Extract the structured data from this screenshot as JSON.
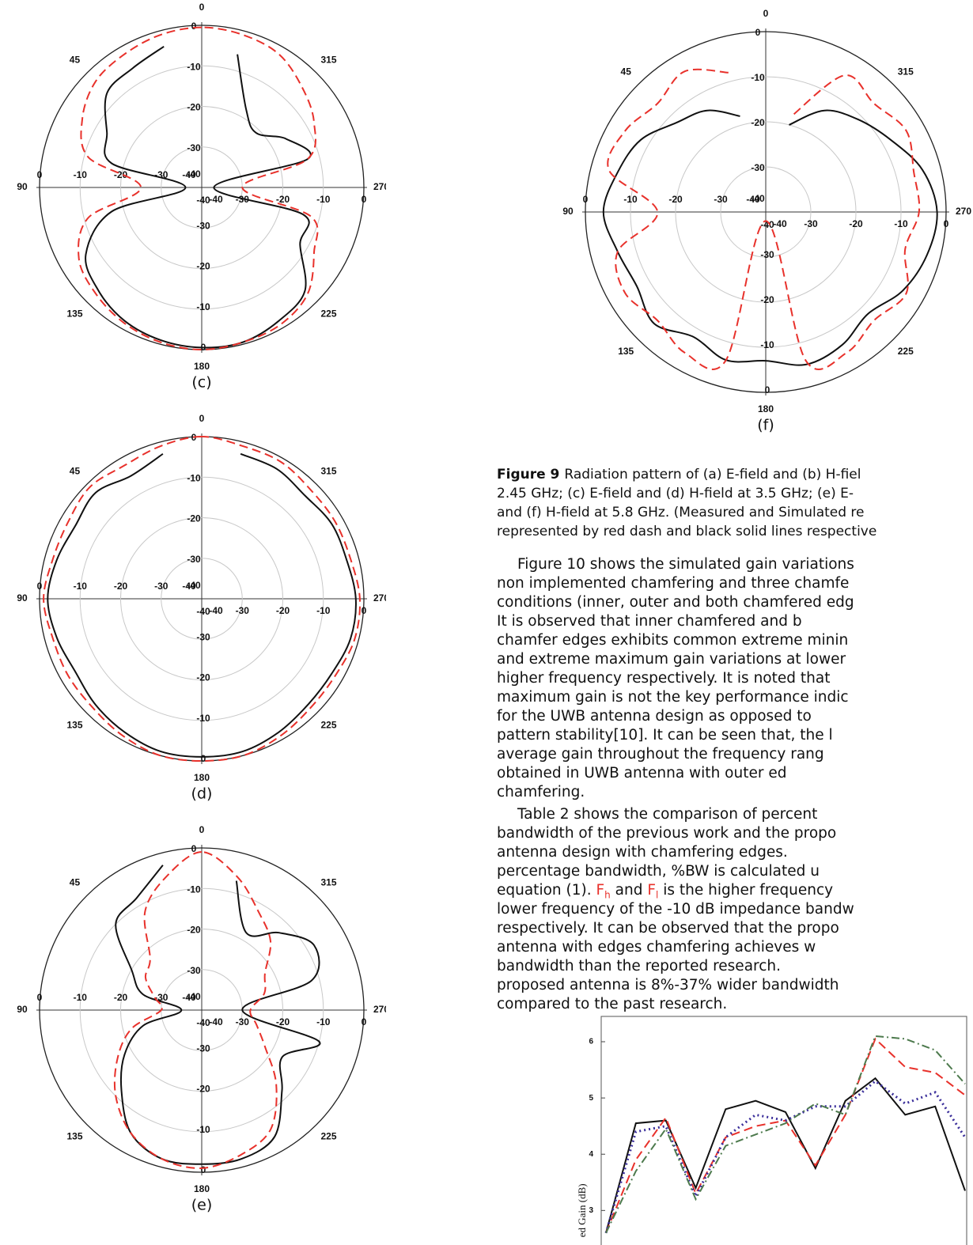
{
  "chart_data": [
    {
      "type": "polar",
      "label": "(c)",
      "rlim": [
        -40,
        0
      ],
      "rticks": [
        0,
        -10,
        -20,
        -30,
        -40
      ],
      "angle_ticks": [
        0,
        45,
        90,
        135,
        180,
        225,
        270,
        315
      ],
      "angles": [
        0,
        15,
        30,
        45,
        60,
        75,
        90,
        105,
        120,
        135,
        150,
        165,
        180,
        195,
        210,
        225,
        240,
        255,
        270,
        285,
        300,
        315,
        330,
        345
      ],
      "series": [
        {
          "color": "#111111",
          "dash": "solid",
          "values": [
            null,
            -4,
            -6,
            -7,
            -13,
            -17,
            -36,
            -17,
            -7,
            -4,
            -2,
            -1,
            -0.5,
            -0.5,
            -2,
            -4,
            -12,
            -14,
            -37,
            -13,
            -16,
            -21,
            -18,
            -6
          ]
        },
        {
          "color": "#e8312b",
          "dash": "dashed",
          "values": [
            -0.5,
            -1,
            -2,
            -3,
            -6,
            -11,
            -25,
            -11,
            -5,
            -3,
            -1.5,
            -0.5,
            0,
            -0.5,
            -1,
            -3,
            -8,
            -12,
            -30,
            -13,
            -8,
            -5,
            -2,
            -1
          ]
        }
      ]
    },
    {
      "type": "polar",
      "label": "(d)",
      "rlim": [
        -40,
        0
      ],
      "rticks": [
        0,
        -10,
        -20,
        -30,
        -40
      ],
      "angle_ticks": [
        0,
        45,
        90,
        135,
        180,
        225,
        270,
        315
      ],
      "angles": [
        0,
        15,
        30,
        45,
        60,
        75,
        90,
        105,
        120,
        135,
        150,
        165,
        180,
        195,
        210,
        225,
        240,
        255,
        270,
        285,
        300,
        315,
        330,
        345
      ],
      "series": [
        {
          "color": "#111111",
          "dash": "solid",
          "values": [
            null,
            -3,
            -5,
            -3,
            -4,
            -3,
            -2,
            -3,
            -4,
            -3,
            -2,
            -1,
            -1,
            -1,
            -2,
            -3,
            -3,
            -2,
            -2,
            -3,
            -3,
            -4,
            -3,
            -3
          ]
        },
        {
          "color": "#e8312b",
          "dash": "dashed",
          "values": [
            0,
            -1,
            -2,
            -1,
            -2,
            -2,
            -1,
            -2,
            -2,
            -2,
            -1,
            0,
            0,
            0,
            -1,
            -2,
            -2,
            -1,
            -1,
            -2,
            -2,
            -2,
            -1,
            -1
          ]
        }
      ]
    },
    {
      "type": "polar",
      "label": "(e)",
      "rlim": [
        -40,
        0
      ],
      "rticks": [
        0,
        -10,
        -20,
        -30,
        -40
      ],
      "angle_ticks": [
        0,
        45,
        90,
        135,
        180,
        225,
        270,
        315
      ],
      "angles": [
        0,
        15,
        30,
        45,
        60,
        75,
        90,
        105,
        120,
        135,
        150,
        165,
        180,
        195,
        210,
        225,
        240,
        255,
        270,
        285,
        300,
        315,
        330,
        345
      ],
      "series": [
        {
          "color": "#111111",
          "dash": "solid",
          "values": [
            null,
            -3,
            -8,
            -10,
            -20,
            -25,
            -35,
            -25,
            -18,
            -12,
            -5,
            -2,
            -2,
            -2,
            -4,
            -12,
            -17,
            -10,
            -30,
            -12,
            -8,
            -13,
            -18,
            -7
          ]
        },
        {
          "color": "#e8312b",
          "dash": "dashed",
          "values": [
            -1,
            -6,
            -12,
            -22,
            -24,
            -28,
            -30,
            -22,
            -16,
            -10,
            -5,
            -2,
            -1,
            -3,
            -6,
            -14,
            -22,
            -26,
            -28,
            -24,
            -22,
            -16,
            -12,
            -6
          ]
        }
      ]
    },
    {
      "type": "polar",
      "label": "(f)",
      "rlim": [
        -40,
        0
      ],
      "rticks": [
        0,
        -10,
        -20,
        -30,
        -40
      ],
      "angle_ticks": [
        0,
        45,
        90,
        135,
        180,
        225,
        270,
        315
      ],
      "angles": [
        0,
        15,
        30,
        45,
        60,
        75,
        90,
        105,
        120,
        135,
        150,
        165,
        180,
        195,
        210,
        225,
        240,
        255,
        270,
        285,
        300,
        315,
        330,
        345
      ],
      "series": [
        {
          "color": "#111111",
          "dash": "solid",
          "values": [
            null,
            -18,
            -14,
            -12,
            -8,
            -6,
            -4,
            -6,
            -7,
            -5,
            -8,
            -6,
            -7,
            -5,
            -6,
            -8,
            -5,
            -3,
            -2,
            -4,
            -8,
            -11,
            -14,
            -20
          ]
        },
        {
          "color": "#e8312b",
          "dash": "dashed",
          "values": [
            null,
            -8,
            -4,
            -6,
            -4,
            -4,
            -16,
            -6,
            -4,
            -6,
            -4,
            -6,
            -38,
            -6,
            -4,
            -6,
            -4,
            -8,
            -6,
            -6,
            -4,
            -6,
            -5,
            -18
          ]
        }
      ]
    },
    {
      "type": "line",
      "ylabel": "ed Gain (dB)",
      "categories": [
        null,
        null,
        null,
        null,
        null,
        null,
        null,
        null,
        null,
        null,
        null,
        null,
        null
      ],
      "ylim": [
        2.4,
        6.45
      ],
      "yticks": [
        3,
        4,
        5,
        6
      ],
      "series": [
        {
          "color": "#111111",
          "dash": "solid",
          "values": [
            2.6,
            4.55,
            4.6,
            3.4,
            4.8,
            4.95,
            4.75,
            3.75,
            4.95,
            5.35,
            4.7,
            4.85,
            3.35
          ]
        },
        {
          "color": "#e8312b",
          "dash": "dashed",
          "values": [
            2.6,
            3.9,
            4.65,
            3.3,
            4.3,
            4.5,
            4.6,
            3.8,
            4.7,
            6.05,
            5.55,
            5.45,
            5.05
          ]
        },
        {
          "color": "#3a2e9a",
          "dash": "dotted",
          "values": [
            2.6,
            4.4,
            4.5,
            3.25,
            4.3,
            4.7,
            4.6,
            4.85,
            4.85,
            5.3,
            4.9,
            5.1,
            4.3
          ]
        },
        {
          "color": "#4d7a4d",
          "dash": "dashdot",
          "values": [
            2.6,
            3.7,
            4.45,
            3.2,
            4.15,
            4.35,
            4.55,
            4.9,
            4.7,
            6.1,
            6.05,
            5.85,
            5.25
          ]
        }
      ]
    }
  ],
  "caption": {
    "label": "Figure 9",
    "lines": [
      "Radiation pattern of (a) E-field and (b) H-fiel",
      "2.45 GHz; (c) E-field and (d) H-field at 3.5 GHz; (e) E-",
      "and (f) H-field at 5.8 GHz. (Measured and Simulated re",
      "represented by red dash and black solid lines respective"
    ]
  },
  "paragraphs": [
    [
      "Figure 10 shows the simulated gain variations",
      "non implemented chamfering and three chamfe",
      "conditions (inner, outer and both chamfered edg",
      "It is observed that inner chamfered and b",
      "chamfer edges exhibits common extreme minin",
      "and extreme maximum gain variations at lower",
      "higher frequency respectively. It is noted that",
      "maximum gain is not the key performance indic",
      "for the UWB antenna design as opposed to",
      "pattern stability[10]. It can be seen that, the l",
      "average gain throughout the frequency rang",
      "obtained in UWB antenna with outer ed",
      "chamfering."
    ],
    [
      "Table 2 shows the comparison of percent",
      "bandwidth of the previous work and the propo",
      "antenna design with chamfering edges.",
      "percentage bandwidth, %BW is calculated u",
      [
        {
          "text": "equation (1). "
        },
        {
          "text": "F",
          "color": "#e8312b"
        },
        {
          "text": "h",
          "color": "#e8312b",
          "sub": true
        },
        {
          "text": " and "
        },
        {
          "text": "F",
          "color": "#e8312b"
        },
        {
          "text": "l",
          "color": "#e8312b",
          "sub": true
        },
        {
          "text": " is the higher frequency"
        }
      ],
      "lower frequency of the -10 dB impedance bandw",
      "respectively. It can be observed that the propo",
      "antenna with edges chamfering achieves w",
      "bandwidth than the reported research.",
      "proposed antenna is 8%-37% wider bandwidth",
      "compared to the past research."
    ]
  ]
}
